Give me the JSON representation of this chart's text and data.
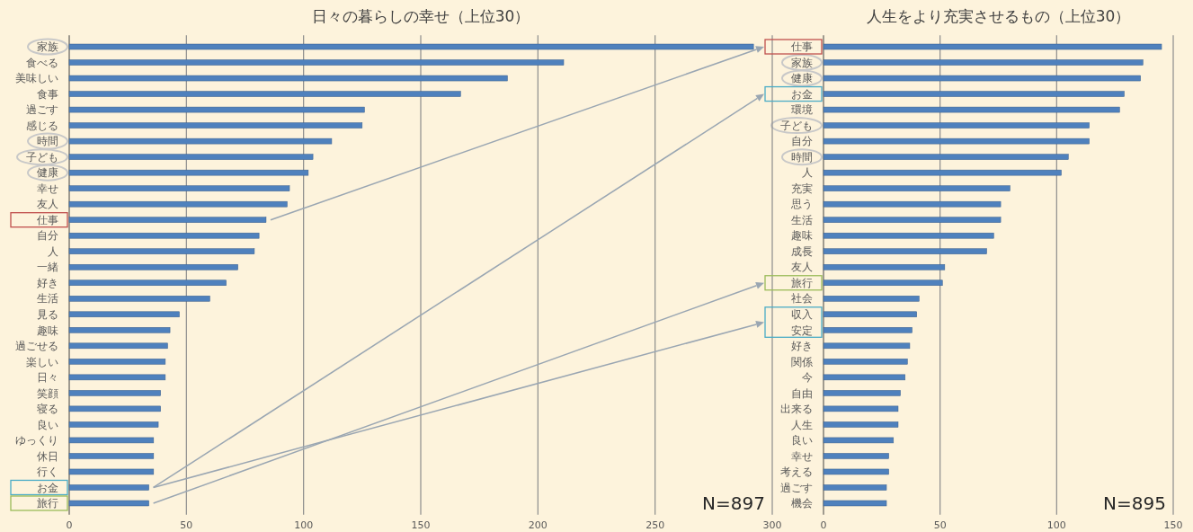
{
  "chart_data": [
    {
      "type": "bar",
      "orientation": "horizontal",
      "title": "日々の暮らしの幸せ（上位30）",
      "categories": [
        "家族",
        "食べる",
        "美味しい",
        "食事",
        "過ごす",
        "感じる",
        "時間",
        "子ども",
        "健康",
        "幸せ",
        "友人",
        "仕事",
        "自分",
        "人",
        "一緒",
        "好き",
        "生活",
        "見る",
        "趣味",
        "過ごせる",
        "楽しい",
        "日々",
        "笑顔",
        "寝る",
        "良い",
        "ゆっくり",
        "休日",
        "行く",
        "お金",
        "旅行"
      ],
      "values": [
        292,
        211,
        187,
        167,
        126,
        125,
        112,
        104,
        102,
        94,
        93,
        84,
        81,
        79,
        72,
        67,
        60,
        47,
        43,
        42,
        41,
        41,
        39,
        39,
        38,
        36,
        36,
        36,
        34,
        34
      ],
      "color": "#4f81bd",
      "xlim": [
        0,
        300
      ],
      "xticks": [
        0,
        50,
        100,
        150,
        200,
        250,
        300
      ],
      "grid": "x",
      "annotations": [
        "N=897"
      ]
    },
    {
      "type": "bar",
      "orientation": "horizontal",
      "title": "人生をより充実させるもの（上位30）",
      "categories": [
        "仕事",
        "家族",
        "健康",
        "お金",
        "環境",
        "子ども",
        "自分",
        "時間",
        "人",
        "充実",
        "思う",
        "生活",
        "趣味",
        "成長",
        "友人",
        "旅行",
        "社会",
        "収入",
        "安定",
        "好き",
        "関係",
        "今",
        "自由",
        "出来る",
        "人生",
        "良い",
        "幸せ",
        "考える",
        "過ごす",
        "機会"
      ],
      "values": [
        145,
        137,
        136,
        129,
        127,
        114,
        114,
        105,
        102,
        80,
        76,
        76,
        73,
        70,
        52,
        51,
        41,
        40,
        38,
        37,
        36,
        35,
        33,
        32,
        32,
        30,
        28,
        28,
        27,
        27
      ],
      "color": "#4f81bd",
      "xlim": [
        0,
        150
      ],
      "xticks": [
        0,
        50,
        100,
        150
      ],
      "grid": "x",
      "annotations": [
        "N=895"
      ]
    }
  ]
}
